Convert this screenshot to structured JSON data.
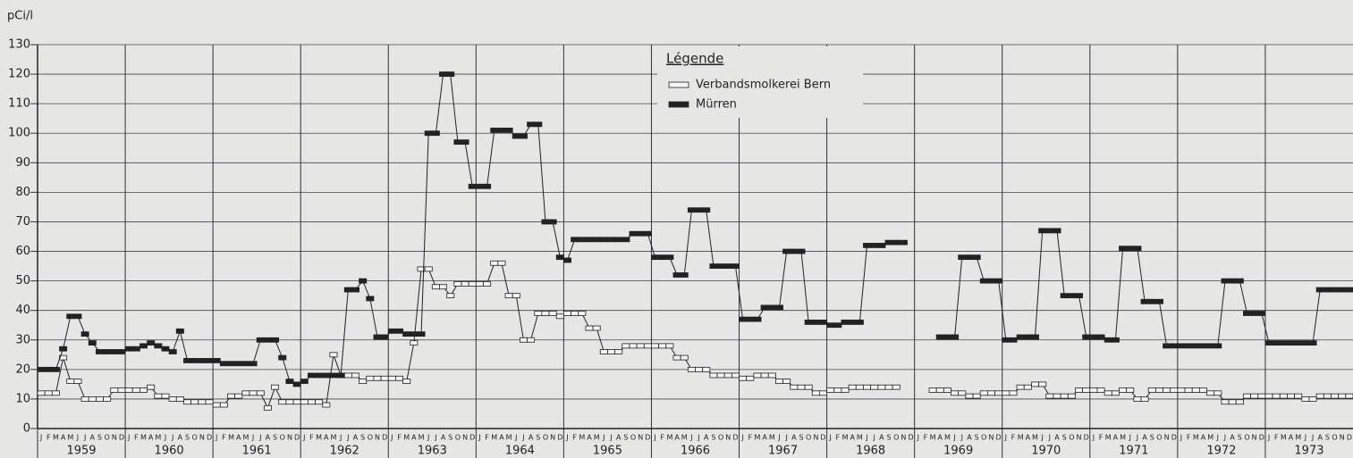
{
  "chart_data": {
    "type": "step-line",
    "y_label": "pCi/l",
    "legend_title": "Légende",
    "ylim": [
      0,
      130
    ],
    "yticks": [
      0,
      10,
      20,
      30,
      40,
      50,
      60,
      70,
      80,
      90,
      100,
      110,
      120,
      130
    ],
    "grid": true,
    "years": [
      "1959",
      "1960",
      "1961",
      "1962",
      "1963",
      "1964",
      "1965",
      "1966",
      "1967",
      "1968",
      "1969",
      "1970",
      "1971",
      "1972",
      "1973"
    ],
    "categories": [
      "J",
      "F",
      "M",
      "A",
      "M",
      "J",
      "J",
      "A",
      "S",
      "O",
      "N",
      "D",
      "J",
      "F",
      "M",
      "A",
      "M",
      "J",
      "J",
      "A",
      "S",
      "O",
      "N",
      "D",
      "J",
      "F",
      "M",
      "A",
      "M",
      "J",
      "J",
      "A",
      "S",
      "O",
      "N",
      "D",
      "J",
      "F",
      "M",
      "A",
      "M",
      "J",
      "J",
      "A",
      "S",
      "O",
      "N",
      "D",
      "J",
      "F",
      "M",
      "A",
      "M",
      "J",
      "J",
      "A",
      "S",
      "O",
      "N",
      "D",
      "J",
      "F",
      "M",
      "A",
      "M",
      "J",
      "J",
      "A",
      "S",
      "O",
      "N",
      "D",
      "J",
      "F",
      "M",
      "A",
      "M",
      "J",
      "J",
      "A",
      "S",
      "O",
      "N",
      "D",
      "J",
      "F",
      "M",
      "A",
      "M",
      "J",
      "J",
      "A",
      "S",
      "O",
      "N",
      "D",
      "J",
      "F",
      "M",
      "A",
      "M",
      "J",
      "J",
      "A",
      "S",
      "O",
      "N",
      "D",
      "J",
      "F",
      "M",
      "A",
      "M",
      "J",
      "J",
      "A",
      "S",
      "O",
      "N",
      "D",
      "J",
      "F",
      "M",
      "A",
      "M",
      "J",
      "J",
      "A",
      "S",
      "O",
      "N",
      "D",
      "J",
      "F",
      "M",
      "A",
      "M",
      "J",
      "J",
      "A",
      "S",
      "O",
      "N",
      "D",
      "J",
      "F",
      "M",
      "A",
      "M",
      "J",
      "J",
      "A",
      "S",
      "O",
      "N",
      "D",
      "J",
      "F",
      "M",
      "A",
      "M",
      "J",
      "J",
      "A",
      "S",
      "O",
      "N",
      "D",
      "J",
      "F",
      "M",
      "A",
      "M",
      "J",
      "J",
      "A",
      "S",
      "O",
      "N",
      "D"
    ],
    "series": [
      {
        "name": "Verbandsmolkerei Bern",
        "color": "#f4f4f4",
        "values": [
          12,
          12,
          12,
          24,
          16,
          16,
          10,
          10,
          10,
          10,
          13,
          13,
          13,
          13,
          13,
          14,
          11,
          11,
          10,
          10,
          9,
          9,
          9,
          9,
          8,
          8,
          11,
          11,
          12,
          12,
          12,
          7,
          14,
          9,
          9,
          9,
          9,
          9,
          9,
          8,
          25,
          18,
          18,
          18,
          16,
          17,
          17,
          17,
          17,
          17,
          16,
          29,
          54,
          54,
          48,
          48,
          45,
          49,
          49,
          49,
          49,
          49,
          56,
          56,
          45,
          45,
          30,
          30,
          39,
          39,
          39,
          38,
          39,
          39,
          39,
          34,
          34,
          26,
          26,
          26,
          28,
          28,
          28,
          28,
          28,
          28,
          28,
          24,
          24,
          20,
          20,
          20,
          18,
          18,
          18,
          18,
          17,
          17,
          18,
          18,
          18,
          16,
          16,
          14,
          14,
          14,
          12,
          12,
          13,
          13,
          13,
          14,
          14,
          14,
          14,
          14,
          14,
          14,
          null,
          null,
          null,
          null,
          13,
          13,
          13,
          12,
          12,
          11,
          11,
          12,
          12,
          12,
          12,
          12,
          14,
          14,
          15,
          15,
          11,
          11,
          11,
          11,
          13,
          13,
          13,
          13,
          12,
          12,
          13,
          13,
          10,
          10,
          13,
          13,
          13,
          13,
          13,
          13,
          13,
          13,
          12,
          12,
          9,
          9,
          9,
          11,
          11,
          11,
          11,
          11,
          11,
          11,
          11,
          10,
          10,
          11,
          11,
          11,
          11,
          11
        ]
      },
      {
        "name": "Mürren",
        "color": "#222222",
        "values": [
          20,
          20,
          20,
          27,
          38,
          38,
          32,
          29,
          26,
          26,
          26,
          26,
          27,
          27,
          28,
          29,
          28,
          27,
          26,
          33,
          23,
          23,
          23,
          23,
          23,
          22,
          22,
          22,
          22,
          22,
          30,
          30,
          30,
          24,
          16,
          15,
          16,
          18,
          18,
          18,
          18,
          18,
          47,
          47,
          50,
          44,
          31,
          31,
          33,
          33,
          32,
          32,
          32,
          100,
          100,
          120,
          120,
          97,
          97,
          82,
          82,
          82,
          101,
          101,
          101,
          99,
          99,
          103,
          103,
          70,
          70,
          58,
          57,
          64,
          64,
          64,
          64,
          64,
          64,
          64,
          64,
          66,
          66,
          66,
          58,
          58,
          58,
          52,
          52,
          74,
          74,
          74,
          55,
          55,
          55,
          55,
          37,
          37,
          37,
          41,
          41,
          41,
          60,
          60,
          60,
          36,
          36,
          36,
          35,
          35,
          36,
          36,
          36,
          62,
          62,
          62,
          63,
          63,
          63,
          null,
          null,
          null,
          null,
          31,
          31,
          31,
          58,
          58,
          58,
          50,
          50,
          50,
          30,
          30,
          31,
          31,
          31,
          67,
          67,
          67,
          45,
          45,
          45,
          31,
          31,
          31,
          30,
          30,
          61,
          61,
          61,
          43,
          43,
          43,
          28,
          28,
          28,
          28,
          28,
          28,
          28,
          28,
          50,
          50,
          50,
          39,
          39,
          39,
          29,
          29,
          29,
          29,
          29,
          29,
          29,
          47,
          47,
          47,
          47,
          47
        ]
      }
    ]
  }
}
